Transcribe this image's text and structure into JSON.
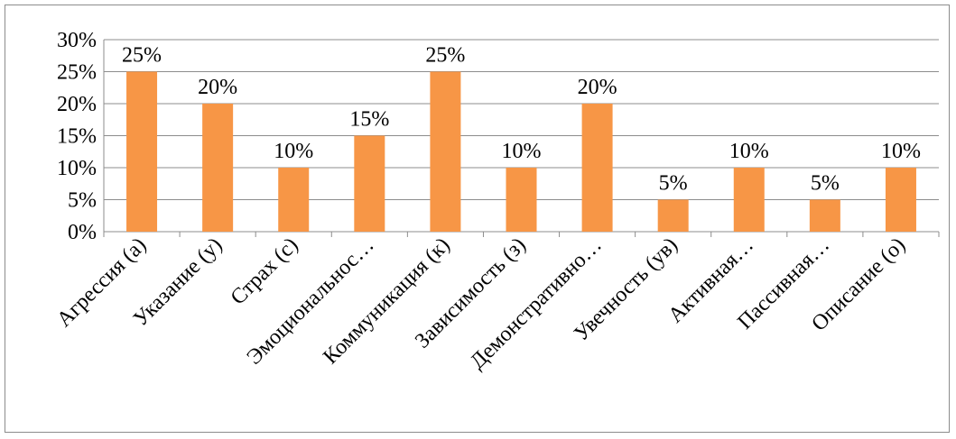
{
  "chart_data": {
    "type": "bar",
    "categories": [
      "Агрессия (а)",
      "Указание (у)",
      "Страх (с)",
      "Эмоциональнос…",
      "Коммуникация (к)",
      "Зависимость (з)",
      "Демонстративно…",
      "Увечность (ув)",
      "Активная…",
      "Пассивная…",
      "Описание (о)"
    ],
    "values": [
      25,
      20,
      10,
      15,
      25,
      10,
      20,
      5,
      10,
      5,
      10
    ],
    "value_labels": [
      "25%",
      "20%",
      "10%",
      "15%",
      "25%",
      "10%",
      "20%",
      "5%",
      "10%",
      "5%",
      "10%"
    ],
    "y_ticks": [
      0,
      5,
      10,
      15,
      20,
      25,
      30
    ],
    "y_tick_labels": [
      "0%",
      "5%",
      "10%",
      "15%",
      "20%",
      "25%",
      "30%"
    ],
    "ylim": [
      0,
      30
    ],
    "grid": true,
    "legend": "none",
    "colors": {
      "bar": "#f79646",
      "grid": "#8c8c8c",
      "axis": "#8c8c8c"
    }
  }
}
